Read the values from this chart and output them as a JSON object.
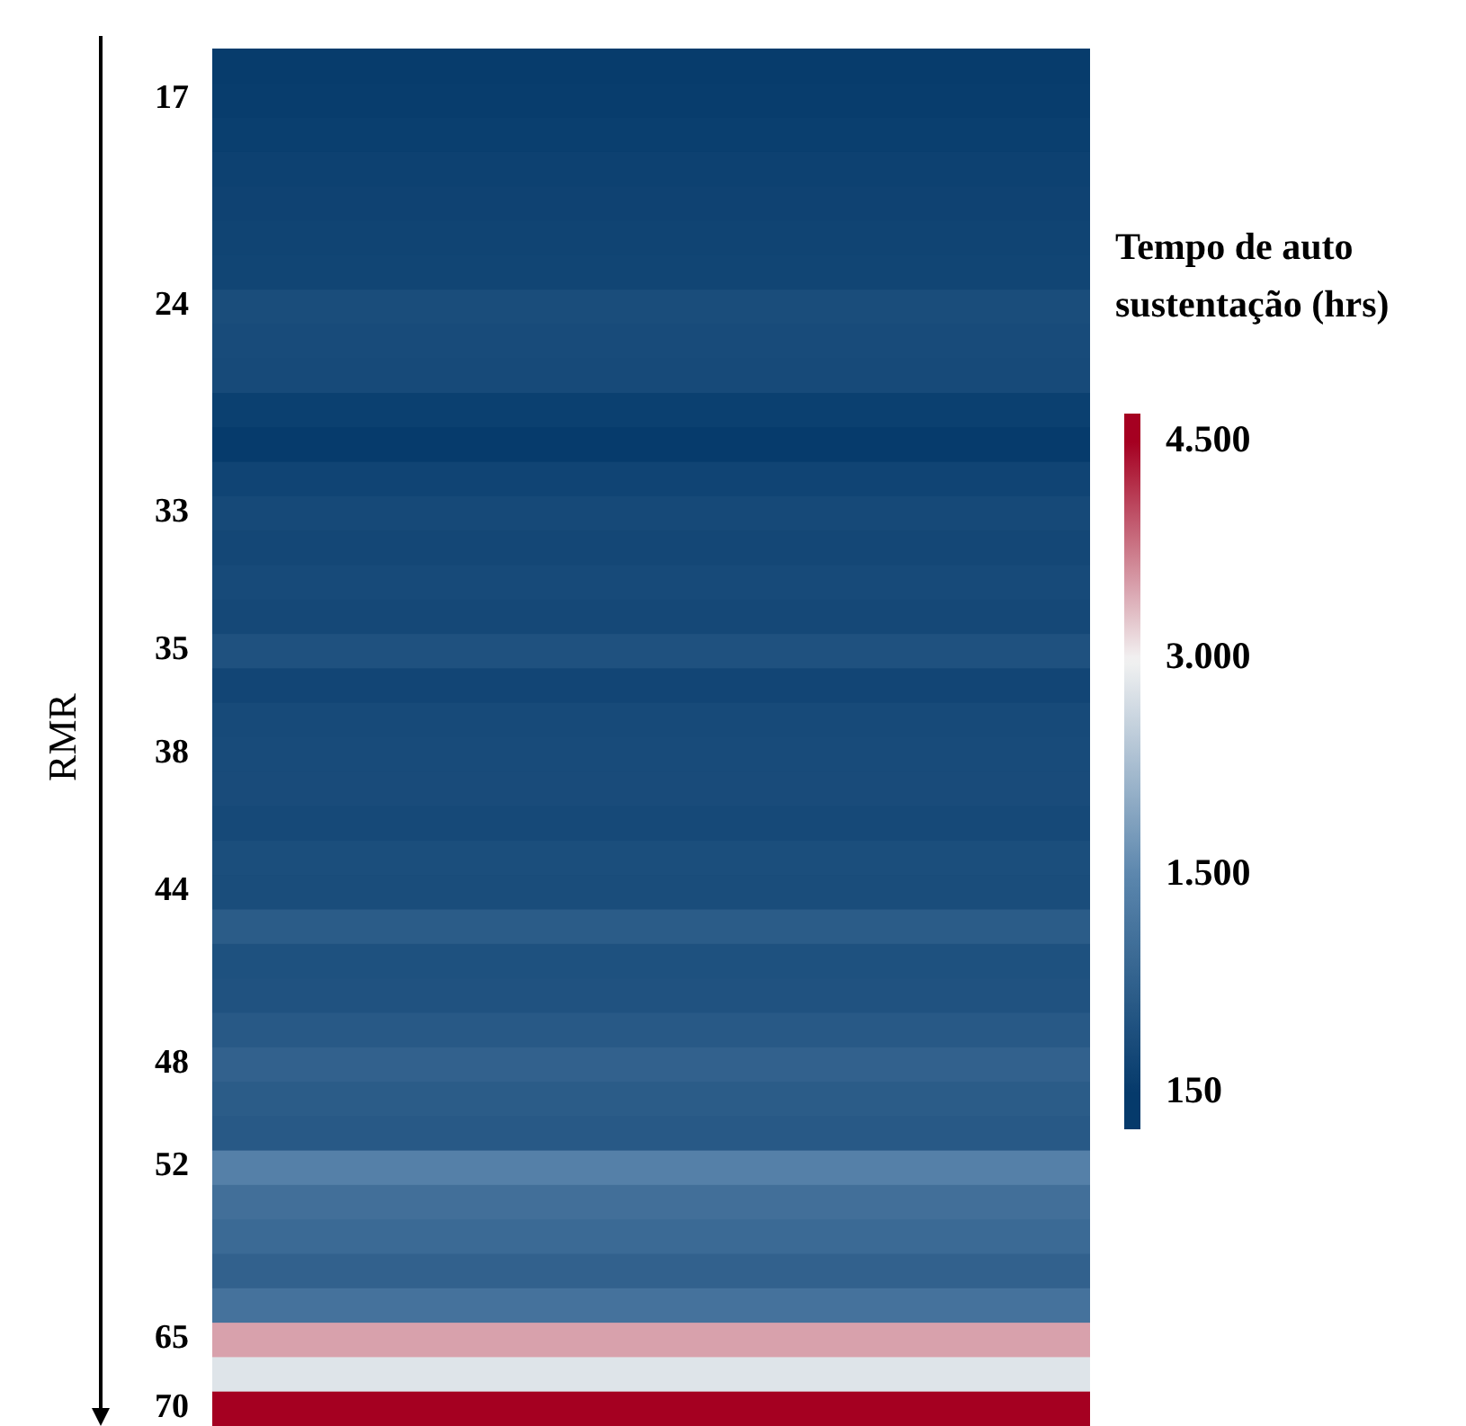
{
  "chart_data": {
    "type": "heatmap",
    "ylabel": "RMR",
    "clabel": "Tempo de auto sustentação (hrs)",
    "categories": [
      null
    ],
    "y_categories": [
      null,
      "17",
      null,
      null,
      null,
      null,
      null,
      "24",
      null,
      null,
      null,
      null,
      null,
      "33",
      null,
      null,
      null,
      "35",
      null,
      null,
      "38",
      null,
      null,
      null,
      "44",
      null,
      null,
      null,
      null,
      "48",
      null,
      null,
      "52",
      null,
      null,
      null,
      null,
      "65",
      null,
      "70"
    ],
    "cells": [
      [
        180
      ],
      [
        200
      ],
      [
        230
      ],
      [
        280
      ],
      [
        300
      ],
      [
        320
      ],
      [
        340
      ],
      [
        480
      ],
      [
        450
      ],
      [
        430
      ],
      [
        250
      ],
      [
        170
      ],
      [
        330
      ],
      [
        420
      ],
      [
        380
      ],
      [
        440
      ],
      [
        400
      ],
      [
        560
      ],
      [
        350
      ],
      [
        430
      ],
      [
        450
      ],
      [
        460
      ],
      [
        420
      ],
      [
        500
      ],
      [
        480
      ],
      [
        750
      ],
      [
        550
      ],
      [
        580
      ],
      [
        700
      ],
      [
        850
      ],
      [
        750
      ],
      [
        700
      ],
      [
        1400
      ],
      [
        1100
      ],
      [
        1000
      ],
      [
        850
      ],
      [
        1150
      ],
      [
        3500
      ],
      [
        2800
      ],
      [
        4500
      ]
    ],
    "clim": [
      150,
      4500
    ],
    "cticks": [
      {
        "value": 150,
        "label": "150"
      },
      {
        "value": 1500,
        "label": "1.500"
      },
      {
        "value": 3000,
        "label": "3.000"
      },
      {
        "value": 4500,
        "label": "4.500"
      }
    ]
  }
}
